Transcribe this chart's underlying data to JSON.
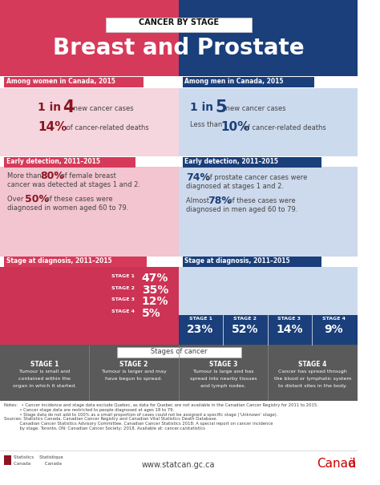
{
  "title_top": "CANCER BY STAGE",
  "title_main": "Breast and Prostate",
  "left_header": "Among women in Canada, 2015",
  "right_header": "Among men in Canada, 2015",
  "left_early_header": "Early detection, 2011–2015",
  "right_early_header": "Early detection, 2011–2015",
  "left_stage_header": "Stage at diagnosis, 2011–2015",
  "right_stage_header": "Stage at diagnosis, 2011–2015",
  "breast_stages": [
    "STAGE 1",
    "STAGE 2",
    "STAGE 3",
    "STAGE 4"
  ],
  "breast_pcts": [
    "47%",
    "35%",
    "12%",
    "5%"
  ],
  "prostate_stages": [
    "STAGE 1",
    "STAGE 2",
    "STAGE 3",
    "STAGE 4"
  ],
  "prostate_pcts": [
    "23%",
    "52%",
    "14%",
    "9%"
  ],
  "stages_of_cancer_title": "Stages of cancer",
  "stage_labels": [
    "STAGE 1",
    "STAGE 2",
    "STAGE 3",
    "STAGE 4"
  ],
  "stage_descs": [
    "Tumour is small and\ncontained within the\norgan in which it started.",
    "Tumour is larger and may\nhave begun to spread.",
    "Tumour is large and has\nspread into nearby tissues\nand lymph nodes.",
    "Cancer has spread through\nthe blood or lymphatic system\nto distant sites in the body."
  ],
  "notes_text": "Notes:   • Cancer incidence and stage data exclude Quebec, as data for Quebec are not available in the Canadian Cancer Registry for 2011 to 2015.\n            • Cancer stage data are restricted to people diagnosed at ages 18 to 79.\n            • Stage data do not add to 100% as a small proportion of cases could not be assigned a specific stage (‘Unknown’ stage).\nSources: Statistics Canada, Canadian Cancer Registry and Canadian Vital Statistics Death Database.\n            Canadian Cancer Statistics Advisory Committee. Canadian Cancer Statistics 2018: A special report on cancer incidence\n            by stage. Toronto, ON: Canadian Cancer Society; 2018. Available at: cancer.ca/statistics",
  "website": "www.statcan.gc.ca",
  "pink_dark": "#d63a5a",
  "pink_mid": "#e8829a",
  "pink_light": "#f5d5de",
  "pink_section": "#f2c5d0",
  "blue_dark": "#1a3f7a",
  "blue_mid": "#1f5fa6",
  "blue_light": "#ccdaee",
  "blue_section": "#cdd9ec",
  "dark_red": "#8b1520",
  "red_stage_bg": "#c23a5a",
  "dark_gray": "#444444",
  "mid_gray": "#777777",
  "stage_gray": "#5a5a5a",
  "white": "#ffffff"
}
